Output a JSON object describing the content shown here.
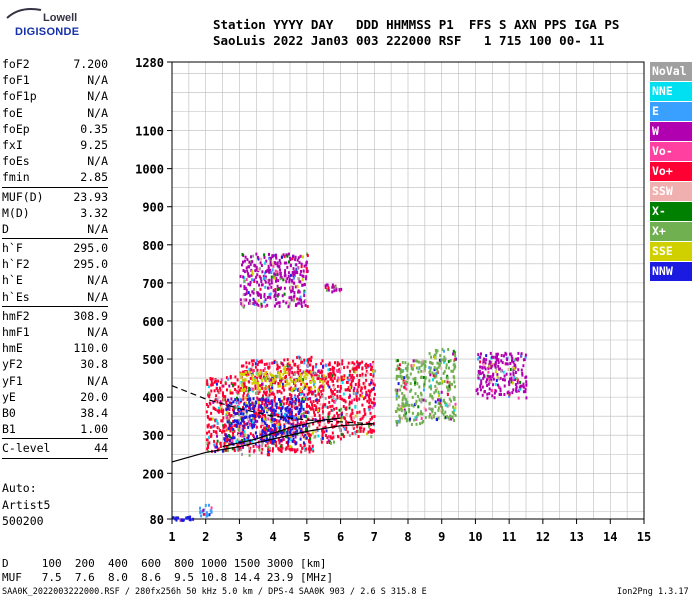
{
  "logo": {
    "brand_top": "Lowell",
    "brand_bottom": "DIGISONDE"
  },
  "header": {
    "line1": "Station YYYY DAY   DDD HHMMSS P1  FFS S AXN PPS IGA PS",
    "line2": "SaoLuis 2022 Jan03 003 222000 RSF   1 715 100 00- 11"
  },
  "params": {
    "group1": [
      {
        "k": "foF2",
        "v": "7.200"
      },
      {
        "k": "foF1",
        "v": "N/A"
      },
      {
        "k": "foF1p",
        "v": "N/A"
      },
      {
        "k": "foE",
        "v": "N/A"
      },
      {
        "k": "foEp",
        "v": "0.35"
      },
      {
        "k": "fxI",
        "v": "9.25"
      },
      {
        "k": "foEs",
        "v": "N/A"
      },
      {
        "k": "fmin",
        "v": "2.85"
      }
    ],
    "group2": [
      {
        "k": "MUF(D)",
        "v": "23.93"
      },
      {
        "k": "M(D)",
        "v": "3.32"
      },
      {
        "k": "D",
        "v": "N/A"
      }
    ],
    "group3": [
      {
        "k": "h`F",
        "v": "295.0"
      },
      {
        "k": "h`F2",
        "v": "295.0"
      },
      {
        "k": "h`E",
        "v": "N/A"
      },
      {
        "k": "h`Es",
        "v": "N/A"
      }
    ],
    "group4": [
      {
        "k": "hmF2",
        "v": "308.9"
      },
      {
        "k": "hmF1",
        "v": "N/A"
      },
      {
        "k": "hmE",
        "v": "110.0"
      },
      {
        "k": "yF2",
        "v": "30.8"
      },
      {
        "k": "yF1",
        "v": "N/A"
      },
      {
        "k": "yE",
        "v": "20.0"
      },
      {
        "k": "B0",
        "v": "38.4"
      },
      {
        "k": "B1",
        "v": "1.00"
      }
    ],
    "group5": [
      {
        "k": "C-level",
        "v": "44"
      }
    ]
  },
  "auto": {
    "line1": "Auto:",
    "line2": "Artist5",
    "line3": "500200"
  },
  "legend": [
    {
      "label": "NoVal",
      "color": "#a0a0a0"
    },
    {
      "label": "NNE",
      "color": "#00e0f0"
    },
    {
      "label": "E",
      "color": "#3aa0ff"
    },
    {
      "label": "W",
      "color": "#b000b0"
    },
    {
      "label": "Vo-",
      "color": "#ff40a0"
    },
    {
      "label": "Vo+",
      "color": "#ff0033"
    },
    {
      "label": "SSW",
      "color": "#f0b0b0"
    },
    {
      "label": "X-",
      "color": "#008000"
    },
    {
      "label": "X+",
      "color": "#70b050"
    },
    {
      "label": "SSE",
      "color": "#d0d000"
    },
    {
      "label": "NNW",
      "color": "#1a1ae0"
    }
  ],
  "chart_data": {
    "type": "scatter",
    "x_ticks": [
      1,
      2,
      3,
      4,
      5,
      6,
      7,
      8,
      9,
      10,
      11,
      12,
      13,
      14,
      15
    ],
    "y_ticks": [
      80,
      200,
      300,
      400,
      500,
      600,
      700,
      800,
      900,
      1000,
      1100,
      1280
    ],
    "xlim": [
      1,
      15
    ],
    "ylim": [
      80,
      1280
    ],
    "grid": true,
    "clusters": [
      {
        "x": [
          1.0,
          1.6
        ],
        "y": [
          80,
          90
        ],
        "color_key": "NNW"
      },
      {
        "x": [
          1.8,
          2.2
        ],
        "y": [
          90,
          120
        ],
        "color_key": "E"
      },
      {
        "x": [
          2.0,
          3.0
        ],
        "y": [
          260,
          460
        ],
        "color_key": "Vo+"
      },
      {
        "x": [
          3.0,
          4.0
        ],
        "y": [
          250,
          500
        ],
        "color_key": "Vo+"
      },
      {
        "x": [
          4.0,
          5.2
        ],
        "y": [
          260,
          510
        ],
        "color_key": "Vo+"
      },
      {
        "x": [
          5.2,
          6.0
        ],
        "y": [
          280,
          500
        ],
        "color_key": "Vo+"
      },
      {
        "x": [
          6.0,
          7.0
        ],
        "y": [
          300,
          500
        ],
        "color_key": "Vo+"
      },
      {
        "x": [
          7.6,
          8.5
        ],
        "y": [
          330,
          500
        ],
        "color_key": "X+"
      },
      {
        "x": [
          8.6,
          9.4
        ],
        "y": [
          340,
          530
        ],
        "color_key": "X+"
      },
      {
        "x": [
          10.0,
          11.5
        ],
        "y": [
          400,
          520
        ],
        "color_key": "W"
      },
      {
        "x": [
          3.0,
          5.0
        ],
        "y": [
          640,
          780
        ],
        "color_key": "W"
      },
      {
        "x": [
          5.5,
          6.0
        ],
        "y": [
          680,
          700
        ],
        "color_key": "W"
      },
      {
        "x": [
          3.0,
          5.5
        ],
        "y": [
          420,
          470
        ],
        "color_key": "SSE"
      },
      {
        "x": [
          2.5,
          5.0
        ],
        "y": [
          280,
          400
        ],
        "color_key": "NNW"
      }
    ],
    "profile_line": [
      [
        1.0,
        230
      ],
      [
        2.0,
        255
      ],
      [
        3.0,
        270
      ],
      [
        4.0,
        290
      ],
      [
        5.0,
        310
      ],
      [
        6.0,
        325
      ],
      [
        7.0,
        330
      ]
    ],
    "profile_line2": [
      [
        2.5,
        270
      ],
      [
        3.5,
        290
      ],
      [
        4.5,
        320
      ],
      [
        5.5,
        340
      ],
      [
        6.0,
        345
      ]
    ],
    "dashed_line": [
      [
        1.0,
        430
      ],
      [
        2.0,
        395
      ],
      [
        3.0,
        370
      ],
      [
        4.0,
        350
      ],
      [
        5.0,
        340
      ],
      [
        6.0,
        335
      ],
      [
        7.0,
        330
      ]
    ]
  },
  "dmuf": {
    "line1": "D     100  200  400  600  800 1000 1500 3000 [km]",
    "line2": "MUF   7.5  7.6  8.0  8.6  9.5 10.8 14.4 23.9 [MHz]"
  },
  "footer": {
    "left": "SAA0K_2022003222000.RSF / 280fx256h 50 kHz 5.0 km / DPS-4 SAA0K 903 / 2.6 S 315.8 E",
    "right": "Ion2Png 1.3.17"
  }
}
